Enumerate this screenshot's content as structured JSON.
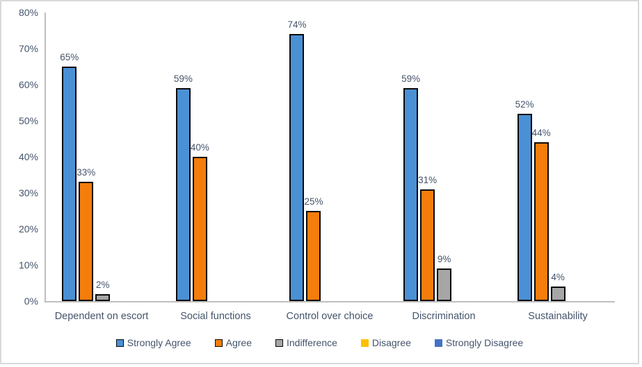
{
  "chart_data": {
    "type": "bar",
    "title": "",
    "xlabel": "",
    "ylabel": "",
    "ylim": [
      0,
      80
    ],
    "grid": false,
    "legend_position": "bottom",
    "y_ticks": [
      "0%",
      "10%",
      "20%",
      "30%",
      "40%",
      "50%",
      "60%",
      "70%",
      "80%"
    ],
    "categories": [
      "Dependent on escort",
      "Social functions",
      "Control over choice",
      "Discrimination",
      "Sustainability"
    ],
    "series": [
      {
        "name": "Strongly Agree",
        "color": "#4a90d5",
        "border_color": "#0a0a0a",
        "values": [
          65,
          59,
          74,
          59,
          52
        ],
        "labels": [
          "65%",
          "59%",
          "74%",
          "59%",
          "52%"
        ]
      },
      {
        "name": "Agree",
        "color": "#f47d0b",
        "border_color": "#0a0a0a",
        "values": [
          33,
          40,
          25,
          31,
          44
        ],
        "labels": [
          "33%",
          "40%",
          "25%",
          "31%",
          "44%"
        ]
      },
      {
        "name": "Indifference",
        "color": "#a6a6a6",
        "border_color": "#0a0a0a",
        "values": [
          2,
          0,
          0,
          9,
          4
        ],
        "labels": [
          "2%",
          "",
          "",
          "9%",
          "4%"
        ]
      },
      {
        "name": "Disagree",
        "color": "#ffc000",
        "border_color": "",
        "values": [
          0,
          0,
          0,
          0,
          0
        ],
        "labels": [
          "",
          "",
          "",
          "",
          ""
        ]
      },
      {
        "name": "Strongly Disagree",
        "color": "#4472c4",
        "border_color": "",
        "values": [
          0,
          0,
          0,
          0,
          0
        ],
        "labels": [
          "",
          "",
          "",
          "",
          ""
        ]
      }
    ],
    "axis_color": "#bfbfbf",
    "text_color": "#44546a",
    "frame_border_color": "#d9d9d9"
  }
}
